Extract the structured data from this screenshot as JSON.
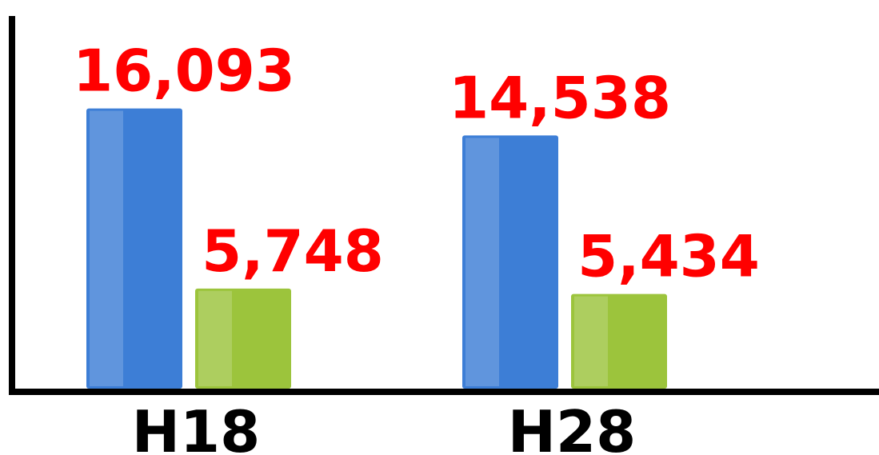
{
  "chart_data": {
    "type": "bar",
    "categories": [
      "H18",
      "H28"
    ],
    "series": [
      {
        "color": "#3d7ed6",
        "values": [
          16093,
          14538
        ],
        "value_labels": [
          "16,093",
          "14,538"
        ]
      },
      {
        "color": "#9cc43c",
        "values": [
          5748,
          5434
        ],
        "value_labels": [
          "5,748",
          "5,434"
        ]
      }
    ],
    "ylim": [
      0,
      21400
    ]
  }
}
